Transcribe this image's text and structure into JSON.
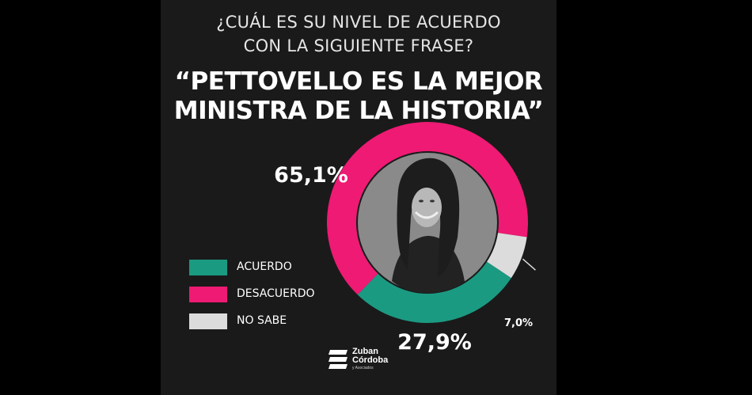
{
  "question": {
    "line1": "¿CUÁL ES SU NIVEL DE ACUERDO",
    "line2": "CON LA SIGUIENTE FRASE?"
  },
  "quote": {
    "line1": "“PETTOVELLO ES LA MEJOR",
    "line2": "MINISTRA DE LA HISTORIA”"
  },
  "colors": {
    "background": "#1a1a1a",
    "acuerdo": "#1b9a82",
    "desacuerdo": "#ee1a73",
    "no_sabe": "#dcdcdc"
  },
  "chart_data": {
    "type": "pie",
    "variant": "donut",
    "categories": [
      "ACUERDO",
      "DESACUERDO",
      "NO SABE"
    ],
    "values": [
      27.9,
      65.1,
      7.0
    ],
    "value_labels": [
      "27,9%",
      "65,1%",
      "7,0%"
    ],
    "unit": "%",
    "legend_position": "left",
    "center_image": "portrait"
  },
  "logo": {
    "line1": "Zuban",
    "line2": "Córdoba",
    "sub": "y Asociados"
  }
}
